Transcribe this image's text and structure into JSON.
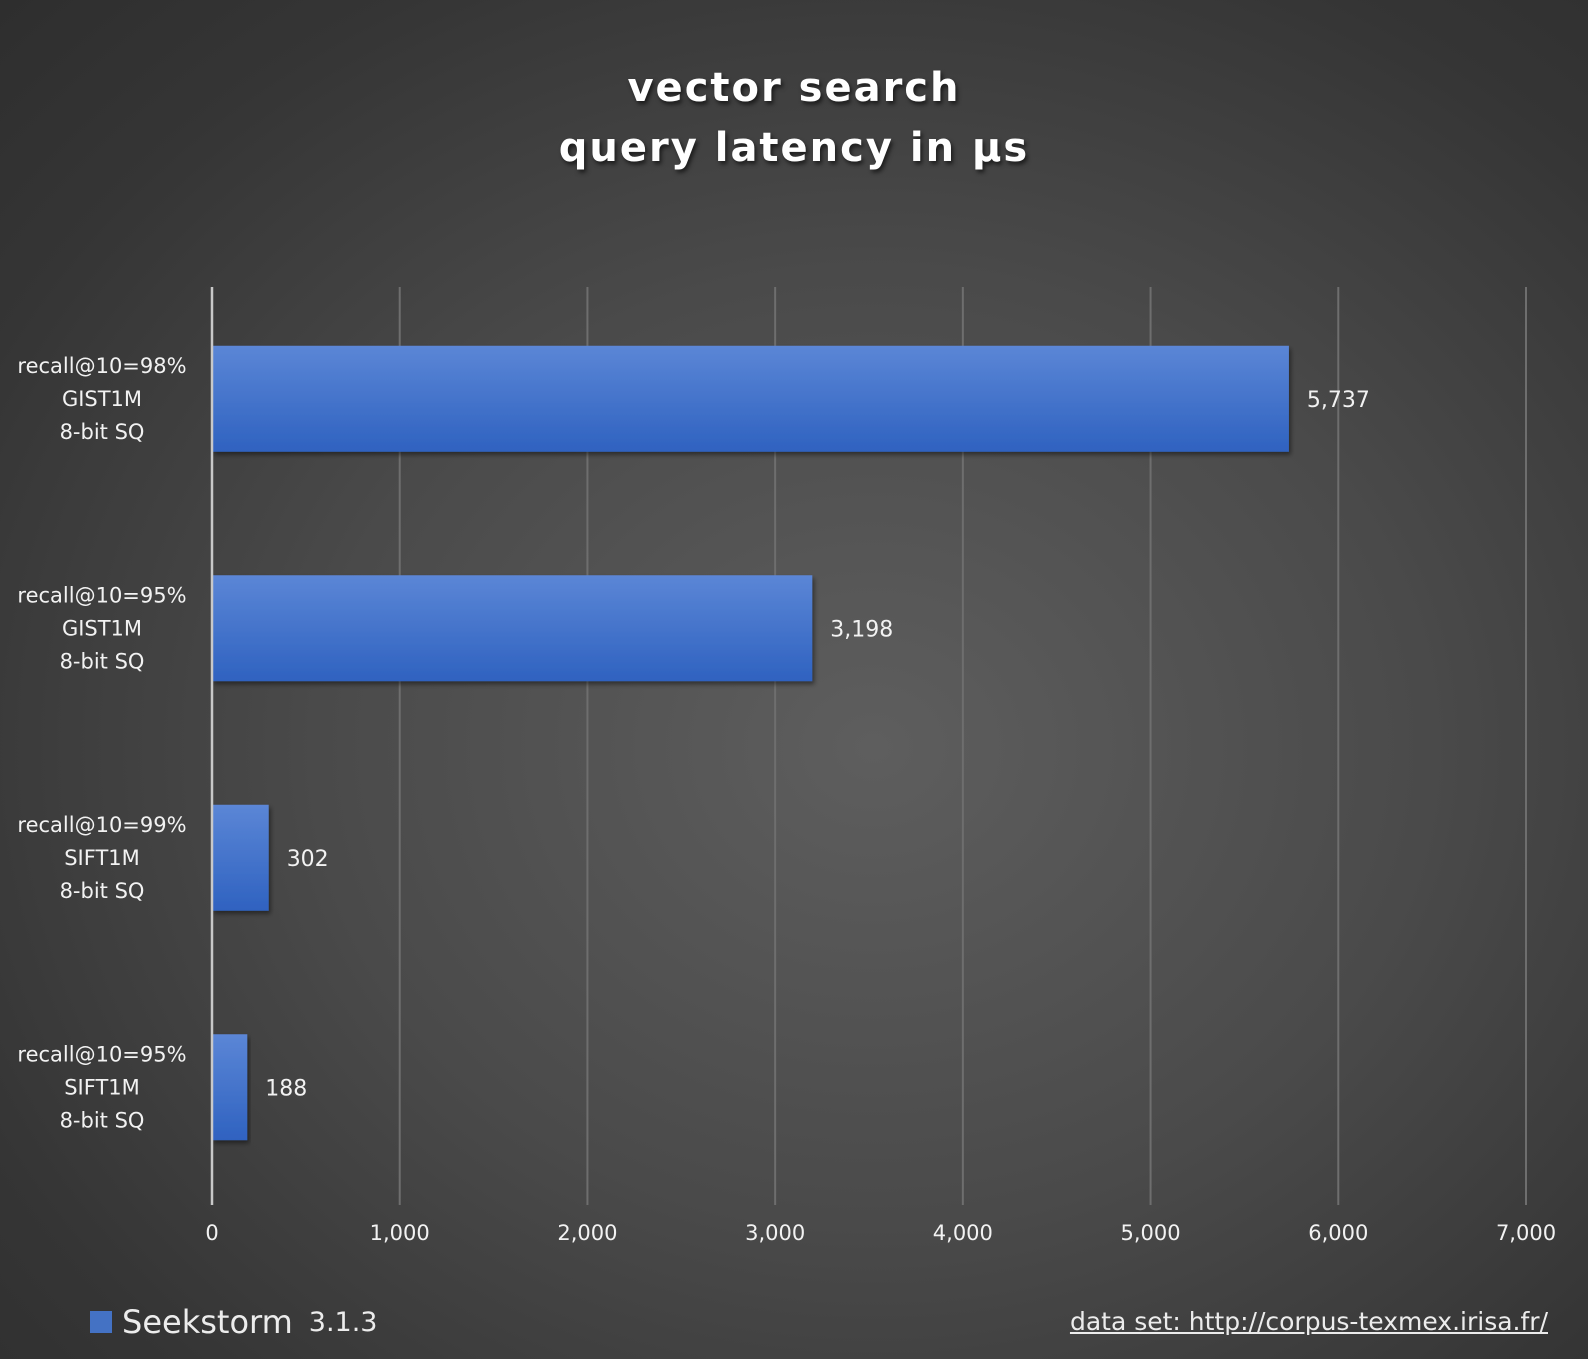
{
  "chart_data": {
    "type": "bar",
    "orientation": "horizontal",
    "title_lines": [
      "vector search",
      "query latency in µs"
    ],
    "categories": [
      [
        "recall@10=98%",
        "GIST1M",
        "8-bit SQ"
      ],
      [
        "recall@10=95%",
        "GIST1M",
        "8-bit SQ"
      ],
      [
        "recall@10=99%",
        "SIFT1M",
        "8-bit SQ"
      ],
      [
        "recall@10=95%",
        "SIFT1M",
        "8-bit SQ"
      ]
    ],
    "series": [
      {
        "name": "Seekstorm",
        "values": [
          5737,
          3198,
          302,
          188
        ],
        "data_labels": [
          "5,737",
          "3,198",
          "302",
          "188"
        ],
        "color": "#4472c4"
      }
    ],
    "xlim": [
      0,
      7000
    ],
    "x_ticks": [
      0,
      1000,
      2000,
      3000,
      4000,
      5000,
      6000,
      7000
    ],
    "x_tick_labels": [
      "0",
      "1,000",
      "2,000",
      "3,000",
      "4,000",
      "5,000",
      "6,000",
      "7,000"
    ],
    "grid": "vertical",
    "legend_position": "bottom-left"
  },
  "legend": {
    "name": "Seekstorm",
    "version": "3.1.3"
  },
  "source_note": "data set: http://corpus-texmex.irisa.fr/",
  "colors": {
    "bar_top": "#5b86d6",
    "bar_bottom": "#2f62c0",
    "axis": "#c8c8c8",
    "grid": "#6e6e6e",
    "text": "#f2f2f2"
  }
}
